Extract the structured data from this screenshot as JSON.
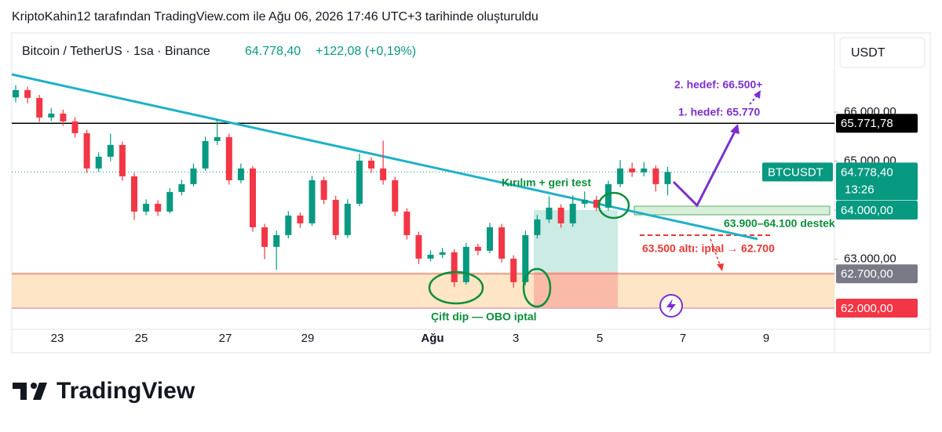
{
  "header": {
    "credit": "KriptoKahin12 tarafından TradingView.com ile Ağu 06, 2026 17:46 UTC+3 tarihinde oluşturuldu",
    "symbol": "Bitcoin / TetherUS · 1sa · Binance",
    "price": "64.778,40",
    "change": "+122,08 (+0,19%)",
    "currency": "USDT",
    "logo": "TradingView"
  },
  "chart_data": {
    "type": "candlestick",
    "up_color": "#089981",
    "down_color": "#f23645",
    "ylim": [
      61568,
      67616
    ],
    "yticks": [
      {
        "value": 66000,
        "label": "66.000,00"
      },
      {
        "value": 65000,
        "label": "65.000,00"
      },
      {
        "value": 64000,
        "label": "64.000,00"
      },
      {
        "value": 63000,
        "label": "63.000,00"
      }
    ],
    "xlabels": [
      "23",
      "25",
      "27",
      "29",
      "Ağu",
      "3",
      "5",
      "7",
      "9"
    ],
    "ohlc": [
      [
        66300,
        66550,
        66200,
        66450
      ],
      [
        66450,
        66520,
        66180,
        66290
      ],
      [
        66290,
        66350,
        65800,
        65890
      ],
      [
        65890,
        66080,
        65820,
        65970
      ],
      [
        65970,
        66050,
        65720,
        65810
      ],
      [
        65810,
        65900,
        65480,
        65570
      ],
      [
        65570,
        65640,
        64760,
        64850
      ],
      [
        64850,
        65180,
        64780,
        65090
      ],
      [
        65090,
        65560,
        65000,
        65330
      ],
      [
        65330,
        65400,
        64600,
        64690
      ],
      [
        64690,
        64760,
        63800,
        63970
      ],
      [
        63970,
        64220,
        63900,
        64130
      ],
      [
        64130,
        64200,
        63880,
        63970
      ],
      [
        63970,
        64450,
        63930,
        64370
      ],
      [
        64370,
        64620,
        64300,
        64530
      ],
      [
        64530,
        64950,
        64480,
        64850
      ],
      [
        64850,
        65500,
        64800,
        65410
      ],
      [
        65410,
        65850,
        65330,
        65490
      ],
      [
        65490,
        65560,
        64520,
        64610
      ],
      [
        64610,
        64950,
        64550,
        64850
      ],
      [
        64850,
        64900,
        63560,
        63650
      ],
      [
        63650,
        63720,
        63000,
        63250
      ],
      [
        63250,
        63580,
        62780,
        63490
      ],
      [
        63490,
        63980,
        63420,
        63890
      ],
      [
        63890,
        63950,
        63640,
        63730
      ],
      [
        63730,
        64700,
        63680,
        64610
      ],
      [
        64610,
        64680,
        64120,
        64210
      ],
      [
        64210,
        64290,
        63400,
        63490
      ],
      [
        63490,
        64220,
        63430,
        64130
      ],
      [
        64130,
        65150,
        64080,
        65010
      ],
      [
        65010,
        65080,
        64760,
        64850
      ],
      [
        64850,
        65420,
        64520,
        64610
      ],
      [
        64610,
        64680,
        63880,
        63970
      ],
      [
        63970,
        64040,
        63400,
        63490
      ],
      [
        63490,
        63560,
        62900,
        63010
      ],
      [
        63010,
        63180,
        62950,
        63090
      ],
      [
        63090,
        63230,
        63020,
        63140
      ],
      [
        63140,
        63200,
        62430,
        62530
      ],
      [
        62530,
        63330,
        62480,
        63250
      ],
      [
        63250,
        63310,
        63080,
        63170
      ],
      [
        63170,
        63740,
        63120,
        63650
      ],
      [
        63650,
        63720,
        62930,
        63010
      ],
      [
        63010,
        63080,
        62420,
        62530
      ],
      [
        62530,
        63580,
        62470,
        63490
      ],
      [
        63490,
        63900,
        63420,
        63810
      ],
      [
        63810,
        64280,
        63740,
        64050
      ],
      [
        64050,
        64120,
        63640,
        63730
      ],
      [
        63730,
        64300,
        63660,
        64130
      ],
      [
        64130,
        64380,
        64050,
        64210
      ],
      [
        64210,
        64290,
        63980,
        64050
      ],
      [
        64050,
        64600,
        63990,
        64530
      ],
      [
        64530,
        65020,
        64470,
        64850
      ],
      [
        64850,
        64970,
        64680,
        64770
      ],
      [
        64770,
        64980,
        64690,
        64850
      ],
      [
        64850,
        64910,
        64380,
        64530
      ],
      [
        64530,
        64880,
        64300,
        64778.4
      ]
    ],
    "trendline": [
      66770,
      63410
    ],
    "levels": [
      {
        "value": 65771.78,
        "label": "65.771,78",
        "color": "#000000"
      },
      {
        "value": 64000,
        "label": "64.000,00",
        "color": "#089981"
      },
      {
        "value": 62700,
        "label": "62.700,00",
        "color": "#787b86"
      },
      {
        "value": 62000,
        "label": "62.000,00",
        "color": "#f23645"
      }
    ],
    "last_price": {
      "value": 64778.4,
      "symbol": "BTCUSDT",
      "label": "64.778,40",
      "countdown": "13:26"
    },
    "annotations": [
      "Kırılım + geri test",
      "63.900–64.100 destek",
      "63.500 altı: iptal → 62.700",
      "1. hedef: 65.770",
      "2. hedef: 66.500+",
      "Çift dip — OBO iptal"
    ]
  }
}
